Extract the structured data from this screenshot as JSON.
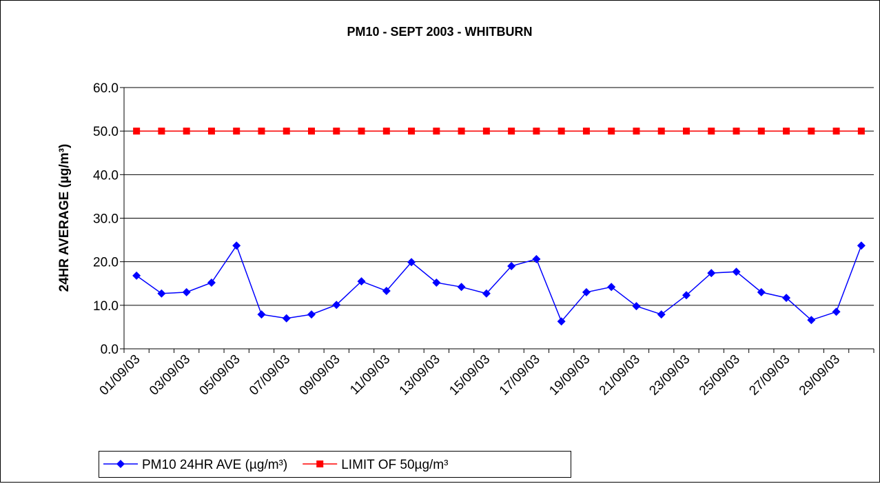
{
  "chart_data": {
    "type": "line",
    "title": "PM10 - SEPT 2003 - WHITBURN",
    "y_label": "24HR AVERAGE (µg/m³)",
    "categories": [
      "01/09/03",
      null,
      "03/09/03",
      null,
      "05/09/03",
      null,
      "07/09/03",
      null,
      "09/09/03",
      null,
      "11/09/03",
      null,
      "13/09/03",
      null,
      "15/09/03",
      null,
      "17/09/03",
      null,
      "19/09/03",
      null,
      "21/09/03",
      null,
      "23/09/03",
      null,
      "25/09/03",
      null,
      "27/09/03",
      null,
      "29/09/03",
      null
    ],
    "series": [
      {
        "name": "PM10 24HR AVE (µg/m³)",
        "color": "#0000ff",
        "marker": "diamond",
        "values": [
          16.8,
          12.7,
          13.0,
          15.2,
          23.7,
          7.9,
          7.0,
          7.9,
          10.1,
          15.5,
          13.3,
          19.9,
          15.2,
          14.2,
          12.7,
          19.0,
          20.6,
          6.3,
          13.0,
          14.2,
          9.8,
          7.9,
          12.3,
          17.4,
          17.7,
          13.0,
          11.7,
          6.6,
          8.5,
          23.7
        ]
      },
      {
        "name": "LIMIT OF 50µg/m³",
        "color": "#ff0000",
        "marker": "square",
        "values": [
          50,
          50,
          50,
          50,
          50,
          50,
          50,
          50,
          50,
          50,
          50,
          50,
          50,
          50,
          50,
          50,
          50,
          50,
          50,
          50,
          50,
          50,
          50,
          50,
          50,
          50,
          50,
          50,
          50,
          50
        ]
      }
    ],
    "ylim": [
      0,
      60
    ],
    "yticks": [
      {
        "value": 0,
        "label": "0.0"
      },
      {
        "value": 10,
        "label": "10.0"
      },
      {
        "value": 20,
        "label": "20.0"
      },
      {
        "value": 30,
        "label": "30.0"
      },
      {
        "value": 40,
        "label": "40.0"
      },
      {
        "value": 50,
        "label": "50.0"
      },
      {
        "value": 60,
        "label": "60.0"
      }
    ],
    "grid": true,
    "legend": "bottom"
  }
}
